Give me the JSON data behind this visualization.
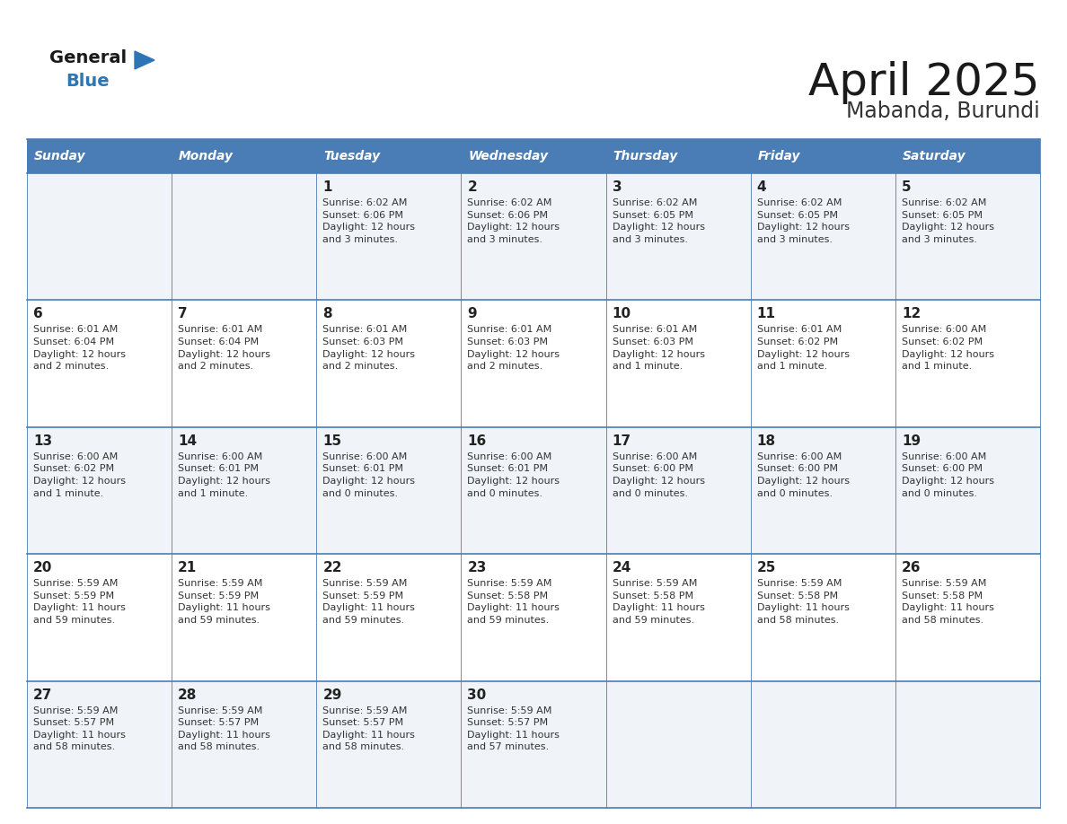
{
  "title": "April 2025",
  "subtitle": "Mabanda, Burundi",
  "days_of_week": [
    "Sunday",
    "Monday",
    "Tuesday",
    "Wednesday",
    "Thursday",
    "Friday",
    "Saturday"
  ],
  "header_bg": "#4A7DB5",
  "header_text": "#FFFFFF",
  "row_bg_odd": "#F0F4F8",
  "row_bg_even": "#FFFFFF",
  "cell_border": "#4A7DB5",
  "title_color": "#1a1a1a",
  "subtitle_color": "#333333",
  "day_number_color": "#222222",
  "info_color": "#333333",
  "logo_general_color": "#1a1a1a",
  "logo_blue_color": "#2E75B6",
  "calendar": [
    [
      {
        "day": null,
        "info": ""
      },
      {
        "day": null,
        "info": ""
      },
      {
        "day": 1,
        "info": "Sunrise: 6:02 AM\nSunset: 6:06 PM\nDaylight: 12 hours\nand 3 minutes."
      },
      {
        "day": 2,
        "info": "Sunrise: 6:02 AM\nSunset: 6:06 PM\nDaylight: 12 hours\nand 3 minutes."
      },
      {
        "day": 3,
        "info": "Sunrise: 6:02 AM\nSunset: 6:05 PM\nDaylight: 12 hours\nand 3 minutes."
      },
      {
        "day": 4,
        "info": "Sunrise: 6:02 AM\nSunset: 6:05 PM\nDaylight: 12 hours\nand 3 minutes."
      },
      {
        "day": 5,
        "info": "Sunrise: 6:02 AM\nSunset: 6:05 PM\nDaylight: 12 hours\nand 3 minutes."
      }
    ],
    [
      {
        "day": 6,
        "info": "Sunrise: 6:01 AM\nSunset: 6:04 PM\nDaylight: 12 hours\nand 2 minutes."
      },
      {
        "day": 7,
        "info": "Sunrise: 6:01 AM\nSunset: 6:04 PM\nDaylight: 12 hours\nand 2 minutes."
      },
      {
        "day": 8,
        "info": "Sunrise: 6:01 AM\nSunset: 6:03 PM\nDaylight: 12 hours\nand 2 minutes."
      },
      {
        "day": 9,
        "info": "Sunrise: 6:01 AM\nSunset: 6:03 PM\nDaylight: 12 hours\nand 2 minutes."
      },
      {
        "day": 10,
        "info": "Sunrise: 6:01 AM\nSunset: 6:03 PM\nDaylight: 12 hours\nand 1 minute."
      },
      {
        "day": 11,
        "info": "Sunrise: 6:01 AM\nSunset: 6:02 PM\nDaylight: 12 hours\nand 1 minute."
      },
      {
        "day": 12,
        "info": "Sunrise: 6:00 AM\nSunset: 6:02 PM\nDaylight: 12 hours\nand 1 minute."
      }
    ],
    [
      {
        "day": 13,
        "info": "Sunrise: 6:00 AM\nSunset: 6:02 PM\nDaylight: 12 hours\nand 1 minute."
      },
      {
        "day": 14,
        "info": "Sunrise: 6:00 AM\nSunset: 6:01 PM\nDaylight: 12 hours\nand 1 minute."
      },
      {
        "day": 15,
        "info": "Sunrise: 6:00 AM\nSunset: 6:01 PM\nDaylight: 12 hours\nand 0 minutes."
      },
      {
        "day": 16,
        "info": "Sunrise: 6:00 AM\nSunset: 6:01 PM\nDaylight: 12 hours\nand 0 minutes."
      },
      {
        "day": 17,
        "info": "Sunrise: 6:00 AM\nSunset: 6:00 PM\nDaylight: 12 hours\nand 0 minutes."
      },
      {
        "day": 18,
        "info": "Sunrise: 6:00 AM\nSunset: 6:00 PM\nDaylight: 12 hours\nand 0 minutes."
      },
      {
        "day": 19,
        "info": "Sunrise: 6:00 AM\nSunset: 6:00 PM\nDaylight: 12 hours\nand 0 minutes."
      }
    ],
    [
      {
        "day": 20,
        "info": "Sunrise: 5:59 AM\nSunset: 5:59 PM\nDaylight: 11 hours\nand 59 minutes."
      },
      {
        "day": 21,
        "info": "Sunrise: 5:59 AM\nSunset: 5:59 PM\nDaylight: 11 hours\nand 59 minutes."
      },
      {
        "day": 22,
        "info": "Sunrise: 5:59 AM\nSunset: 5:59 PM\nDaylight: 11 hours\nand 59 minutes."
      },
      {
        "day": 23,
        "info": "Sunrise: 5:59 AM\nSunset: 5:58 PM\nDaylight: 11 hours\nand 59 minutes."
      },
      {
        "day": 24,
        "info": "Sunrise: 5:59 AM\nSunset: 5:58 PM\nDaylight: 11 hours\nand 59 minutes."
      },
      {
        "day": 25,
        "info": "Sunrise: 5:59 AM\nSunset: 5:58 PM\nDaylight: 11 hours\nand 58 minutes."
      },
      {
        "day": 26,
        "info": "Sunrise: 5:59 AM\nSunset: 5:58 PM\nDaylight: 11 hours\nand 58 minutes."
      }
    ],
    [
      {
        "day": 27,
        "info": "Sunrise: 5:59 AM\nSunset: 5:57 PM\nDaylight: 11 hours\nand 58 minutes."
      },
      {
        "day": 28,
        "info": "Sunrise: 5:59 AM\nSunset: 5:57 PM\nDaylight: 11 hours\nand 58 minutes."
      },
      {
        "day": 29,
        "info": "Sunrise: 5:59 AM\nSunset: 5:57 PM\nDaylight: 11 hours\nand 58 minutes."
      },
      {
        "day": 30,
        "info": "Sunrise: 5:59 AM\nSunset: 5:57 PM\nDaylight: 11 hours\nand 57 minutes."
      },
      {
        "day": null,
        "info": ""
      },
      {
        "day": null,
        "info": ""
      },
      {
        "day": null,
        "info": ""
      }
    ]
  ]
}
